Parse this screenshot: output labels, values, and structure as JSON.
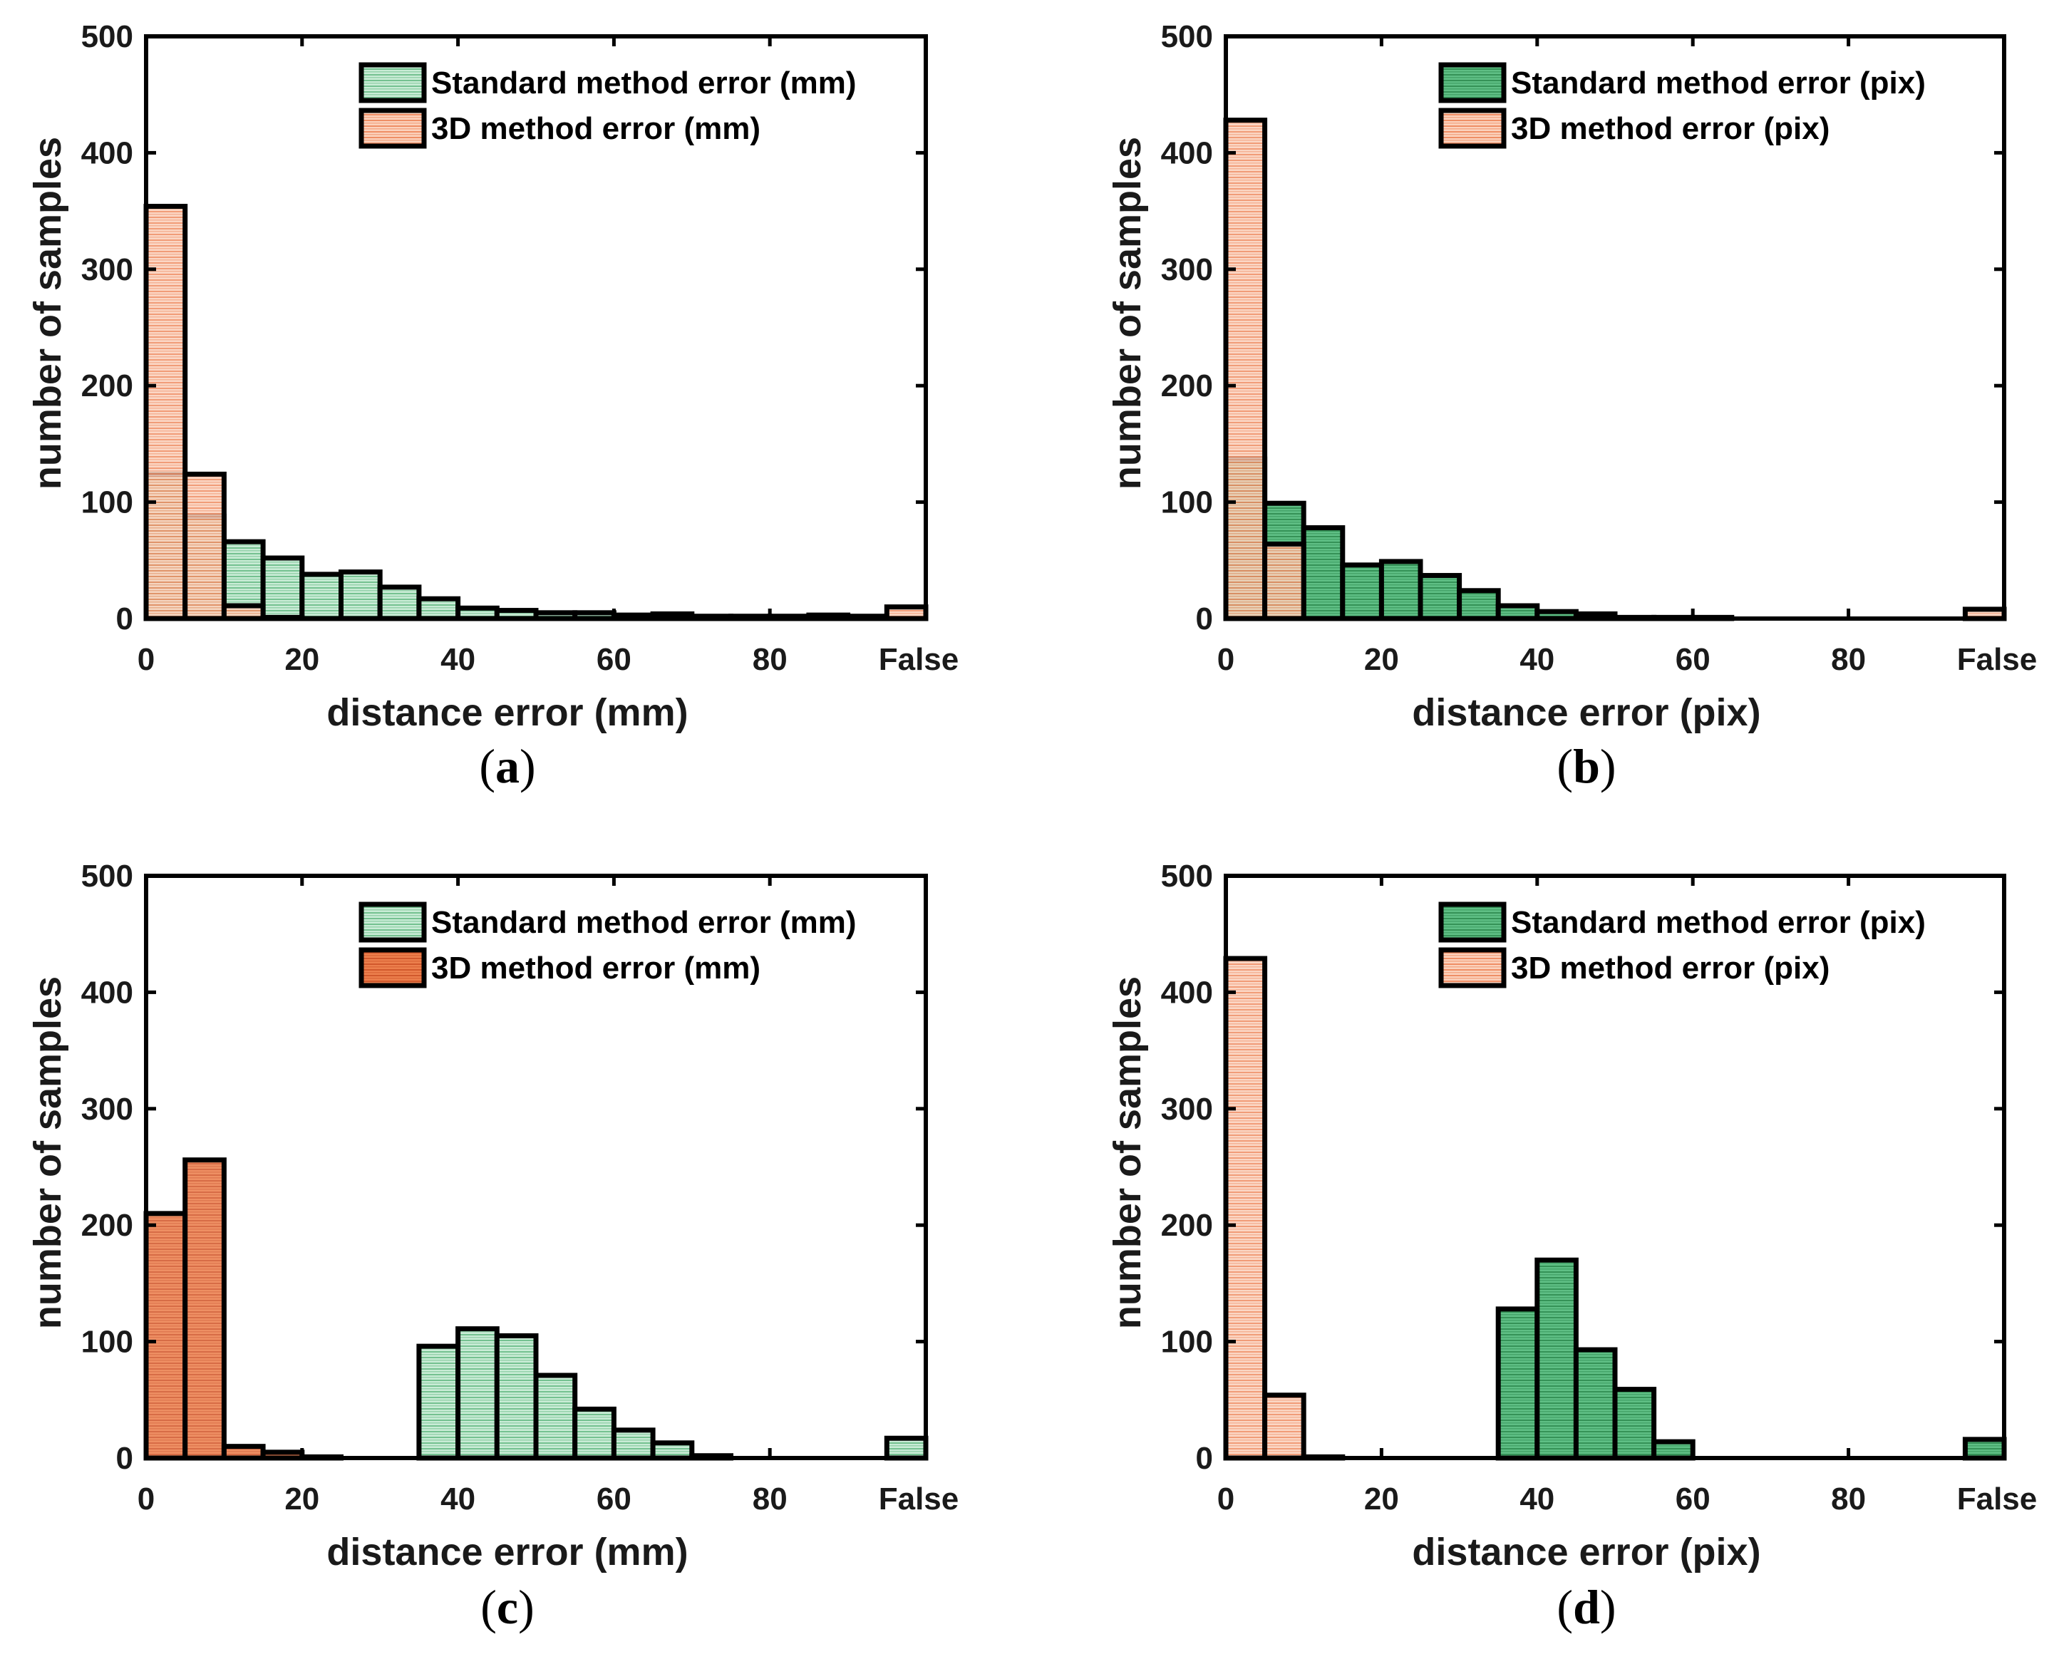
{
  "colors": {
    "standard": "#2e9e55",
    "threed": "#e8602a",
    "frame": "#000000",
    "text": "#1a1a1a"
  },
  "chart_data": [
    {
      "type": "bar",
      "panel": "a",
      "xlabel": "distance error (mm)",
      "ylabel": "number of samples",
      "ylim": [
        0,
        500
      ],
      "xlim": [
        0,
        100
      ],
      "xticks": [
        "0",
        "20",
        "40",
        "60",
        "80",
        "False"
      ],
      "yticks": [
        "0",
        "100",
        "200",
        "300",
        "400",
        "500"
      ],
      "legend_position": "top-right",
      "bin_edges": [
        0,
        5,
        10,
        15,
        20,
        25,
        30,
        35,
        40,
        45,
        50,
        55,
        60,
        65,
        70,
        75,
        80,
        85,
        90,
        95,
        100
      ],
      "series": [
        {
          "name": "Standard method error (mm)",
          "style": "light",
          "values": [
            124,
            88,
            66,
            52,
            38,
            40,
            27,
            17,
            9,
            7,
            5,
            5,
            3,
            4,
            2,
            2,
            2,
            3,
            2,
            0
          ]
        },
        {
          "name": "3D method error (mm)",
          "style": "light",
          "values": [
            354,
            124,
            11,
            1,
            0,
            0,
            0,
            0,
            0,
            0,
            0,
            0,
            0,
            0,
            0,
            0,
            0,
            0,
            0,
            10
          ]
        }
      ]
    },
    {
      "type": "bar",
      "panel": "b",
      "xlabel": "distance error (pix)",
      "ylabel": "number of samples",
      "ylim": [
        0,
        500
      ],
      "xlim": [
        0,
        100
      ],
      "xticks": [
        "0",
        "20",
        "40",
        "60",
        "80",
        "False"
      ],
      "yticks": [
        "0",
        "100",
        "200",
        "300",
        "400",
        "500"
      ],
      "legend_position": "top-right",
      "bin_edges": [
        0,
        5,
        10,
        15,
        20,
        25,
        30,
        35,
        40,
        45,
        50,
        55,
        60,
        65,
        70,
        75,
        80,
        85,
        90,
        95,
        100
      ],
      "series": [
        {
          "name": "Standard method error (pix)",
          "style": "dark",
          "values": [
            137,
            99,
            78,
            46,
            49,
            37,
            24,
            11,
            6,
            4,
            1,
            1,
            1,
            0,
            0,
            0,
            0,
            0,
            0,
            0
          ]
        },
        {
          "name": "3D method error (pix)",
          "style": "light",
          "values": [
            428,
            64,
            0,
            0,
            0,
            0,
            0,
            0,
            0,
            0,
            0,
            0,
            0,
            0,
            0,
            0,
            0,
            0,
            0,
            8
          ]
        }
      ]
    },
    {
      "type": "bar",
      "panel": "c",
      "xlabel": "distance error (mm)",
      "ylabel": "number of samples",
      "ylim": [
        0,
        500
      ],
      "xlim": [
        0,
        100
      ],
      "xticks": [
        "0",
        "20",
        "40",
        "60",
        "80",
        "False"
      ],
      "yticks": [
        "0",
        "100",
        "200",
        "300",
        "400",
        "500"
      ],
      "legend_position": "top-right",
      "bin_edges": [
        0,
        5,
        10,
        15,
        20,
        25,
        30,
        35,
        40,
        45,
        50,
        55,
        60,
        65,
        70,
        75,
        80,
        85,
        90,
        95,
        100
      ],
      "series": [
        {
          "name": "Standard method error (mm)",
          "style": "light",
          "values": [
            0,
            0,
            0,
            0,
            0,
            0,
            0,
            96,
            111,
            105,
            71,
            42,
            24,
            13,
            2,
            0,
            0,
            0,
            0,
            17
          ]
        },
        {
          "name": "3D method error (mm)",
          "style": "dark",
          "values": [
            210,
            256,
            10,
            5,
            1,
            0,
            0,
            0,
            0,
            0,
            0,
            0,
            0,
            0,
            0,
            0,
            0,
            0,
            0,
            0
          ]
        }
      ]
    },
    {
      "type": "bar",
      "panel": "d",
      "xlabel": "distance error (pix)",
      "ylabel": "number of samples",
      "ylim": [
        0,
        500
      ],
      "xlim": [
        0,
        100
      ],
      "xticks": [
        "0",
        "20",
        "40",
        "60",
        "80",
        "False"
      ],
      "yticks": [
        "0",
        "100",
        "200",
        "300",
        "400",
        "500"
      ],
      "legend_position": "top-right",
      "bin_edges": [
        0,
        5,
        10,
        15,
        20,
        25,
        30,
        35,
        40,
        45,
        50,
        55,
        60,
        65,
        70,
        75,
        80,
        85,
        90,
        95,
        100
      ],
      "series": [
        {
          "name": "Standard method error (pix)",
          "style": "dark",
          "values": [
            0,
            0,
            0,
            0,
            0,
            0,
            0,
            128,
            170,
            93,
            59,
            14,
            0,
            0,
            0,
            0,
            0,
            0,
            0,
            16
          ]
        },
        {
          "name": "3D method error (pix)",
          "style": "light",
          "values": [
            429,
            54,
            1,
            0,
            0,
            0,
            0,
            0,
            0,
            0,
            0,
            0,
            0,
            0,
            0,
            0,
            0,
            0,
            0,
            0
          ]
        }
      ]
    }
  ],
  "captions": [
    {
      "open": "(",
      "letter": "a",
      "close": ")"
    },
    {
      "open": "(",
      "letter": "b",
      "close": ")"
    },
    {
      "open": "(",
      "letter": "c",
      "close": ")"
    },
    {
      "open": "(",
      "letter": "d",
      "close": ")"
    }
  ]
}
